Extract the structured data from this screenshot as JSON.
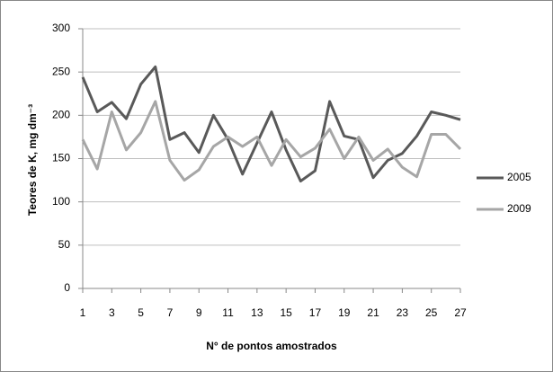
{
  "chart_data": {
    "type": "line",
    "x_label": "N° de pontos amostrados",
    "y_label": "Teores de K, mg dm⁻³",
    "x": [
      1,
      2,
      3,
      4,
      5,
      6,
      7,
      8,
      9,
      10,
      11,
      12,
      13,
      14,
      15,
      16,
      17,
      18,
      19,
      20,
      21,
      22,
      23,
      24,
      25,
      26,
      27
    ],
    "series": [
      {
        "name": "2005",
        "color": "#595959",
        "values": [
          244,
          204,
          215,
          196,
          236,
          256,
          172,
          180,
          157,
          200,
          172,
          132,
          168,
          204,
          160,
          124,
          136,
          216,
          176,
          172,
          128,
          148,
          156,
          176,
          204,
          200,
          195
        ]
      },
      {
        "name": "2009",
        "color": "#a6a6a6",
        "values": [
          172,
          138,
          204,
          160,
          180,
          216,
          148,
          125,
          137,
          164,
          175,
          164,
          175,
          142,
          172,
          152,
          162,
          184,
          150,
          175,
          148,
          161,
          140,
          129,
          178,
          178,
          161
        ]
      }
    ],
    "xlim": [
      1,
      27
    ],
    "xticks": [
      1,
      3,
      5,
      7,
      9,
      11,
      13,
      15,
      17,
      19,
      21,
      23,
      25,
      27
    ],
    "ylim": [
      0,
      300
    ],
    "yticks": [
      0,
      50,
      100,
      150,
      200,
      250,
      300
    ],
    "grid": true,
    "legend": "right"
  }
}
